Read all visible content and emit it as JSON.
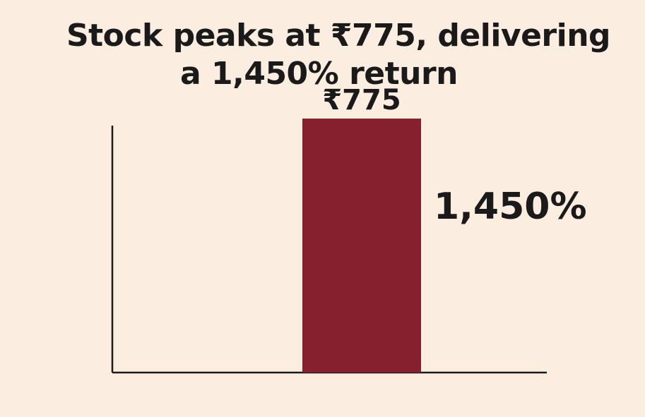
{
  "title": {
    "line1": "Stock peaks at ₹775, delivering",
    "line2": "a 1,450% return"
  },
  "colors": {
    "background": "#fbeee0",
    "bar": "#861f2e",
    "text": "#1a1a1a",
    "axis": "#1a1a1a"
  },
  "chart_data": {
    "type": "bar",
    "categories": [
      ""
    ],
    "values": [
      775
    ],
    "value_labels": [
      "₹775"
    ],
    "annotations": [
      "1,450%"
    ],
    "title": "Stock peaks at ₹775, delivering a 1,450% return",
    "xlabel": "",
    "ylabel": "",
    "ylim": [
      0,
      900
    ],
    "grid": false
  }
}
